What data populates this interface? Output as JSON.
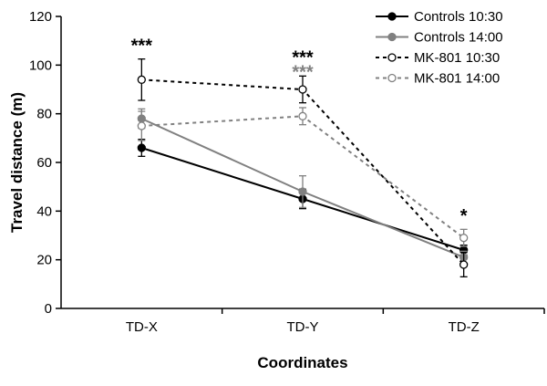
{
  "chart_data": {
    "type": "line",
    "xlabel": "Coordinates",
    "ylabel": "Travel distance (m)",
    "categories": [
      "TD-X",
      "TD-Y",
      "TD-Z"
    ],
    "ylim": [
      0,
      120
    ],
    "yticks": [
      0,
      20,
      40,
      60,
      80,
      100,
      120
    ],
    "grid": false,
    "legend_position": "top-right",
    "series": [
      {
        "name": "Controls 10:30",
        "values": [
          66,
          45,
          24
        ],
        "errors": [
          3.5,
          4,
          2
        ],
        "color": "#000000",
        "dashed": false,
        "filled": true
      },
      {
        "name": "Controls 14:00",
        "values": [
          78,
          48,
          21
        ],
        "errors": [
          4,
          6.5,
          2.5
        ],
        "color": "#808080",
        "dashed": false,
        "filled": true
      },
      {
        "name": "MK-801 10:30",
        "values": [
          94,
          90,
          18
        ],
        "errors": [
          8.5,
          5.5,
          5
        ],
        "color": "#000000",
        "dashed": true,
        "filled": false
      },
      {
        "name": "MK-801 14:00",
        "values": [
          75,
          79,
          29
        ],
        "errors": [
          6,
          3.5,
          3.5
        ],
        "color": "#808080",
        "dashed": true,
        "filled": false
      }
    ],
    "annotations": [
      {
        "category": "TD-X",
        "text": "***",
        "color": "#000000",
        "y": 109
      },
      {
        "category": "TD-Y",
        "text": "***",
        "color": "#000000",
        "y": 104
      },
      {
        "category": "TD-Y",
        "text": "***",
        "color": "#808080",
        "y": 98
      },
      {
        "category": "TD-Z",
        "text": "*",
        "color": "#000000",
        "y": 39
      }
    ]
  }
}
